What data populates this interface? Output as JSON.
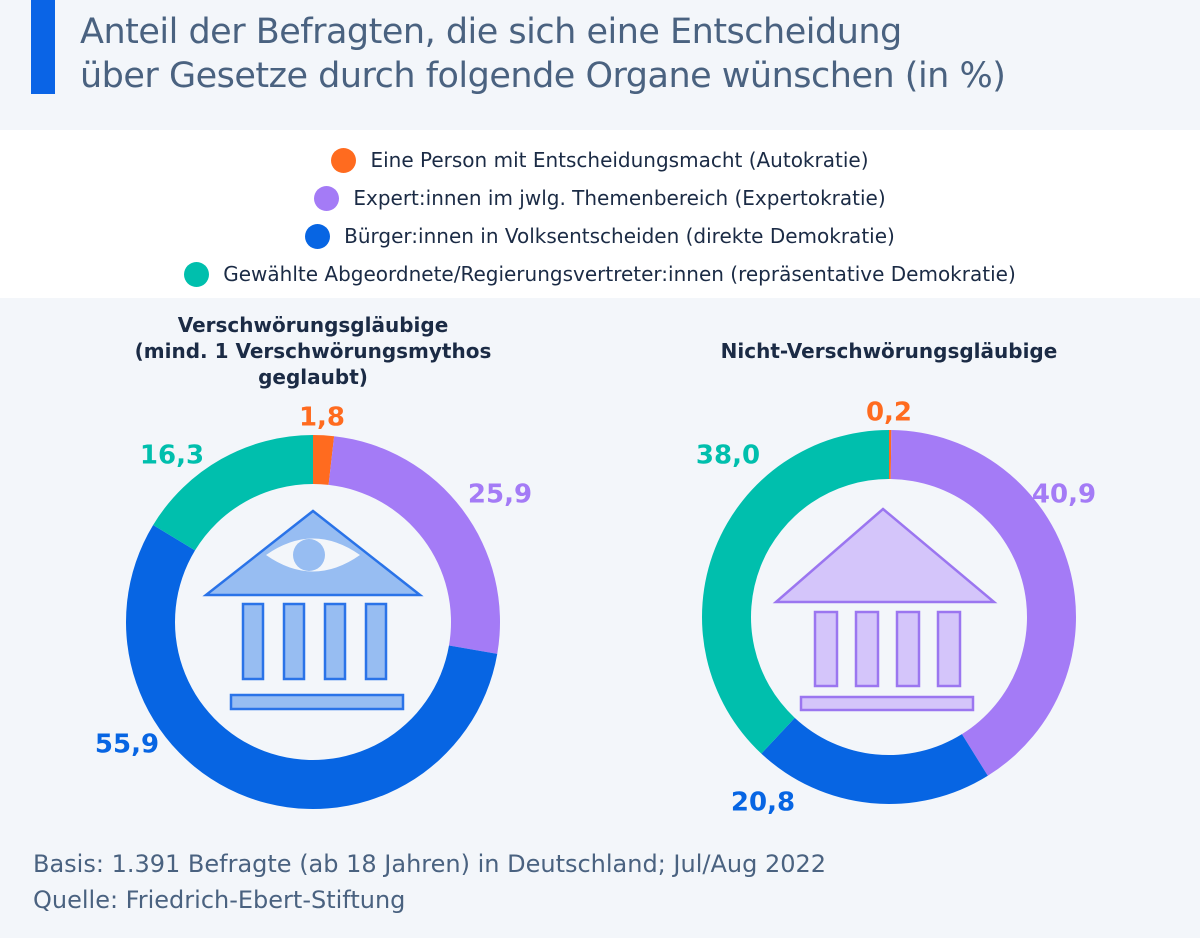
{
  "title": {
    "line1": "Anteil der Befragten, die sich eine Entscheidung",
    "line2": "über Gesetze durch folgende Organe wünschen (in %)",
    "accent_color": "#0a64e6"
  },
  "legend": [
    {
      "label": "Eine Person mit Entscheidungsmacht (Autokratie)",
      "color": "#ff6b1f"
    },
    {
      "label": "Expert:innen im jwlg. Themenbereich (Expertokratie)",
      "color": "#a47bf6"
    },
    {
      "label": "Bürger:innen in Volksentscheiden (direkte Demokratie)",
      "color": "#0765e3"
    },
    {
      "label": "Gewählte Abgeordnete/Regierungsvertreter:innen (repräsentative Demokratie)",
      "color": "#00bfad"
    }
  ],
  "chart_data": [
    {
      "type": "pie",
      "variant": "donut",
      "title": "Verschwörungsgläubige (mind. 1 Verschwörungsmythos geglaubt)",
      "title_lines": [
        "Verschwörungsgläubige",
        "(mind. 1 Verschwörungsmythos",
        "geglaubt)"
      ],
      "categories": [
        "Autokratie",
        "Expertokratie",
        "direkte Demokratie",
        "repräsentative Demokratie"
      ],
      "values": [
        1.8,
        25.9,
        55.9,
        16.3
      ],
      "labels": [
        "1,8",
        "25,9",
        "55,9",
        "16,3"
      ],
      "colors": [
        "#ff6b1f",
        "#a47bf6",
        "#0765e3",
        "#00bfad"
      ],
      "center_icon": "government-building-with-eye-icon",
      "unit": "%"
    },
    {
      "type": "pie",
      "variant": "donut",
      "title": "Nicht-Verschwörungsgläubige",
      "title_lines": [
        "Nicht-Verschwörungsgläubige"
      ],
      "categories": [
        "Autokratie",
        "Expertokratie",
        "direkte Demokratie",
        "repräsentative Demokratie"
      ],
      "values": [
        0.2,
        40.9,
        20.8,
        38.0
      ],
      "labels": [
        "0,2",
        "40,9",
        "20,8",
        "38,0"
      ],
      "colors": [
        "#ff6b1f",
        "#a47bf6",
        "#0765e3",
        "#00bfad"
      ],
      "center_icon": "government-building-icon",
      "unit": "%"
    }
  ],
  "footer": {
    "basis": "Basis: 1.391 Befragte (ab 18 Jahren) in Deutschland; Jul/Aug 2022",
    "source": "Quelle: Friedrich-Ebert-Stiftung"
  }
}
